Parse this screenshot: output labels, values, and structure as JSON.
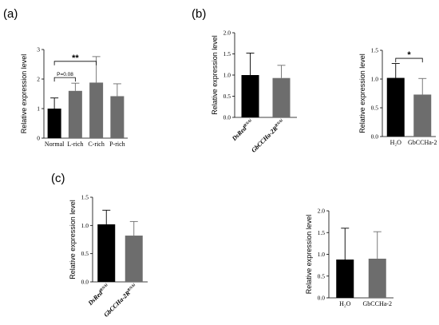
{
  "panel_labels": {
    "a": "(a)",
    "b": "(b)",
    "c": "(c)"
  },
  "colors": {
    "dark": "#000000",
    "gray": "#6d6d6d"
  },
  "chart_data": [
    {
      "id": "a",
      "type": "bar",
      "categories": [
        "Normal",
        "L-rich",
        "C-rich",
        "P-rich"
      ],
      "values": [
        1.0,
        1.6,
        1.88,
        1.42
      ],
      "errors": [
        0.36,
        0.26,
        0.88,
        0.42
      ],
      "bar_colors": [
        "#000000",
        "#6d6d6d",
        "#6d6d6d",
        "#6d6d6d"
      ],
      "ylabel": "Relative expression level",
      "ylim": [
        0,
        3
      ],
      "yticks": [
        "0",
        "1",
        "2",
        "3"
      ],
      "tick_values": [
        0,
        1,
        2,
        3
      ],
      "italic_categories": false,
      "sig": [
        {
          "from": 0,
          "to": 2,
          "label": "**",
          "level": 2.6
        },
        {
          "from": 0,
          "to": 1,
          "label": "P=0.08",
          "level": 2.05
        }
      ]
    },
    {
      "id": "b1",
      "type": "bar",
      "categories": [
        "DsRed",
        "GbCCHa-2R"
      ],
      "category_sup": [
        "RNAi",
        "RNAi"
      ],
      "values": [
        1.0,
        0.93
      ],
      "errors": [
        0.52,
        0.3
      ],
      "bar_colors": [
        "#000000",
        "#6d6d6d"
      ],
      "ylabel": "Relative expression level",
      "ylim": [
        0,
        2
      ],
      "yticks": [
        "0.0",
        "0.5",
        "1.0",
        "1.5",
        "2.0"
      ],
      "tick_values": [
        0,
        0.5,
        1,
        1.5,
        2
      ],
      "italic_categories": true,
      "sig": []
    },
    {
      "id": "b2",
      "type": "bar",
      "categories": [
        "H₂O",
        "GbCCHa-2"
      ],
      "values": [
        1.02,
        0.73
      ],
      "errors": [
        0.25,
        0.28
      ],
      "bar_colors": [
        "#000000",
        "#6d6d6d"
      ],
      "ylabel": "Relative expression level",
      "ylim": [
        0,
        1.5
      ],
      "yticks": [
        "0.0",
        "0.5",
        "1.0",
        "1.5"
      ],
      "tick_values": [
        0,
        0.5,
        1,
        1.5
      ],
      "italic_categories": false,
      "sig": [
        {
          "from": 0,
          "to": 1,
          "label": "*",
          "level": 1.36
        }
      ]
    },
    {
      "id": "c1",
      "type": "bar",
      "categories": [
        "DsRed",
        "GbCCHa-2R"
      ],
      "category_sup": [
        "RNAi",
        "RNAi"
      ],
      "values": [
        1.02,
        0.82
      ],
      "errors": [
        0.25,
        0.25
      ],
      "bar_colors": [
        "#000000",
        "#6d6d6d"
      ],
      "ylabel": "Relative expression level",
      "ylim": [
        0,
        1.5
      ],
      "yticks": [
        "0.0",
        "0.5",
        "1.0",
        "1.5"
      ],
      "tick_values": [
        0,
        0.5,
        1,
        1.5
      ],
      "italic_categories": true,
      "sig": []
    },
    {
      "id": "c2",
      "type": "bar",
      "categories": [
        "H₂O",
        "GbCCHa-2"
      ],
      "values": [
        0.88,
        0.9
      ],
      "errors": [
        0.72,
        0.62
      ],
      "bar_colors": [
        "#000000",
        "#6d6d6d"
      ],
      "ylabel": "Relative expression level",
      "ylim": [
        0,
        2
      ],
      "yticks": [
        "0.0",
        "0.5",
        "1.0",
        "1.5",
        "2.0"
      ],
      "tick_values": [
        0,
        0.5,
        1,
        1.5,
        2
      ],
      "italic_categories": false,
      "sig": []
    }
  ]
}
